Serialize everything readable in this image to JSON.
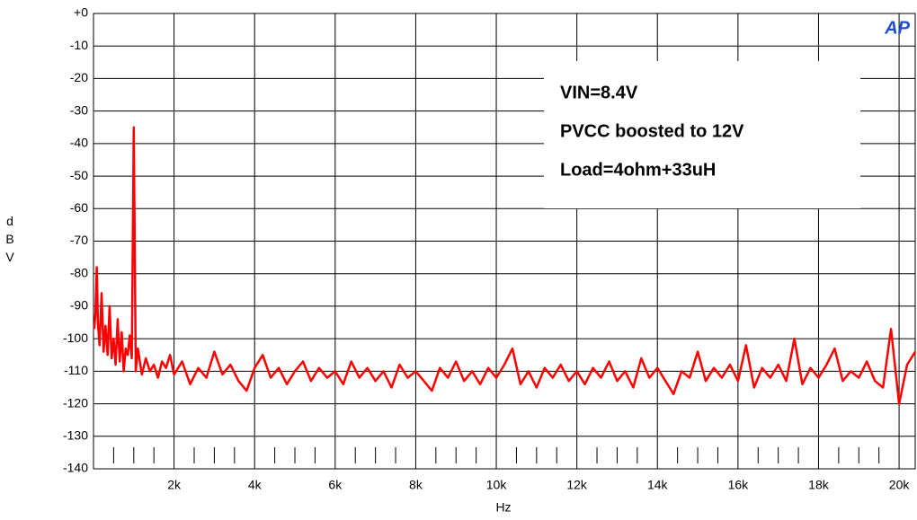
{
  "chart_data": {
    "type": "line",
    "annotations": [
      "VIN=8.4V",
      "PVCC boosted to 12V",
      "Load=4ohm+33uH"
    ],
    "logo": "AP",
    "x_label": "Hz",
    "y_label": "dBV",
    "xlim": [
      0,
      20400
    ],
    "ylim": [
      -140,
      0
    ],
    "xticks": [
      {
        "value": 2000,
        "label": "2k"
      },
      {
        "value": 4000,
        "label": "4k"
      },
      {
        "value": 6000,
        "label": "6k"
      },
      {
        "value": 8000,
        "label": "8k"
      },
      {
        "value": 10000,
        "label": "10k"
      },
      {
        "value": 12000,
        "label": "12k"
      },
      {
        "value": 14000,
        "label": "14k"
      },
      {
        "value": 16000,
        "label": "16k"
      },
      {
        "value": 18000,
        "label": "18k"
      },
      {
        "value": 20000,
        "label": "20k"
      }
    ],
    "xminorticks": [
      500,
      1000,
      1500,
      2500,
      3000,
      3500,
      4500,
      5000,
      5500,
      6500,
      7000,
      7500,
      8500,
      9000,
      9500,
      10500,
      11000,
      11500,
      12500,
      13000,
      13500,
      14500,
      15000,
      15500,
      16500,
      17000,
      17500,
      18500,
      19000,
      19500
    ],
    "yticks": [
      {
        "value": 0,
        "label": "+0"
      },
      -10,
      -20,
      -30,
      -40,
      -50,
      -60,
      -70,
      -80,
      -90,
      -100,
      -110,
      -120,
      -130,
      -140
    ],
    "grid": true,
    "series": [
      {
        "color": "#ff0000",
        "x": [
          20,
          50,
          80,
          110,
          150,
          200,
          250,
          300,
          350,
          400,
          450,
          500,
          550,
          600,
          650,
          700,
          750,
          800,
          850,
          900,
          950,
          1000,
          1050,
          1100,
          1200,
          1300,
          1400,
          1500,
          1600,
          1700,
          1800,
          1900,
          2000,
          2200,
          2400,
          2600,
          2800,
          3000,
          3200,
          3400,
          3600,
          3800,
          4000,
          4200,
          4400,
          4600,
          4800,
          5000,
          5200,
          5400,
          5600,
          5800,
          6000,
          6200,
          6400,
          6600,
          6800,
          7000,
          7200,
          7400,
          7600,
          7800,
          8000,
          8200,
          8400,
          8600,
          8800,
          9000,
          9200,
          9400,
          9600,
          9800,
          10000,
          10200,
          10400,
          10600,
          10800,
          11000,
          11200,
          11400,
          11600,
          11800,
          12000,
          12200,
          12400,
          12600,
          12800,
          13000,
          13200,
          13400,
          13600,
          13800,
          14000,
          14200,
          14400,
          14600,
          14800,
          15000,
          15200,
          15400,
          15600,
          15800,
          16000,
          16200,
          16400,
          16600,
          16800,
          17000,
          17200,
          17400,
          17600,
          17800,
          18000,
          18200,
          18400,
          18600,
          18800,
          19000,
          19200,
          19400,
          19600,
          19800,
          20000,
          20200,
          20400
        ],
        "values": [
          -97,
          -92,
          -78,
          -95,
          -102,
          -86,
          -104,
          -96,
          -105,
          -90,
          -106,
          -100,
          -108,
          -94,
          -107,
          -98,
          -110,
          -103,
          -105,
          -99,
          -106,
          -35,
          -110,
          -103,
          -111,
          -106,
          -110,
          -108,
          -112,
          -107,
          -109,
          -105,
          -111,
          -107,
          -114,
          -109,
          -112,
          -104,
          -111,
          -108,
          -113,
          -116,
          -109,
          -105,
          -112,
          -109,
          -114,
          -110,
          -107,
          -113,
          -109,
          -112,
          -110,
          -114,
          -107,
          -112,
          -109,
          -113,
          -110,
          -115,
          -108,
          -112,
          -110,
          -113,
          -116,
          -109,
          -112,
          -107,
          -113,
          -110,
          -114,
          -109,
          -112,
          -108,
          -103,
          -114,
          -110,
          -115,
          -109,
          -112,
          -108,
          -113,
          -110,
          -114,
          -109,
          -112,
          -107,
          -113,
          -110,
          -115,
          -106,
          -112,
          -109,
          -113,
          -117,
          -110,
          -112,
          -104,
          -113,
          -109,
          -112,
          -108,
          -113,
          -102,
          -115,
          -109,
          -112,
          -108,
          -113,
          -100,
          -114,
          -109,
          -112,
          -108,
          -103,
          -113,
          -110,
          -112,
          -107,
          -113,
          -115,
          -97,
          -120,
          -108,
          -104
        ]
      }
    ]
  }
}
